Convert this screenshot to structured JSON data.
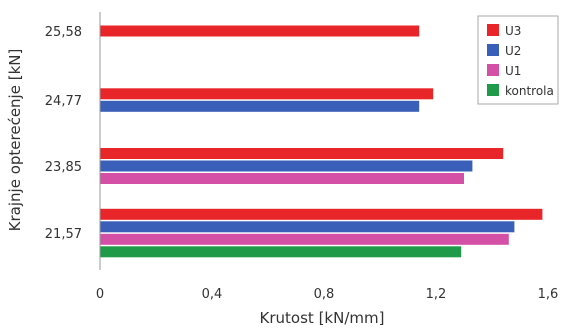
{
  "chart_data": {
    "type": "bar",
    "orientation": "horizontal",
    "title": "",
    "xlabel": "Krutost [kN/mm]",
    "ylabel": "Krajnje opterećenje [kN]",
    "xlim": [
      0,
      1.6
    ],
    "xticks": [
      0,
      0.4,
      0.8,
      1.2,
      1.6
    ],
    "xtick_labels": [
      "0",
      "0,4",
      "0,8",
      "1,2",
      "1,6"
    ],
    "categories": [
      "21,57",
      "23,85",
      "24,77",
      "25,58"
    ],
    "series": [
      {
        "name": "kontrola",
        "color": "#1f9a48",
        "values": [
          1.29,
          null,
          null,
          null
        ]
      },
      {
        "name": "U1",
        "color": "#d44fa6",
        "values": [
          1.46,
          1.3,
          null,
          null
        ]
      },
      {
        "name": "U2",
        "color": "#3a5fb8",
        "values": [
          1.48,
          1.33,
          1.14,
          null
        ]
      },
      {
        "name": "U3",
        "color": "#e8262a",
        "values": [
          1.58,
          1.44,
          1.19,
          1.14
        ]
      }
    ],
    "legend_order": [
      "U3",
      "U2",
      "U1",
      "kontrola"
    ],
    "legend_position": "top-right",
    "grid": false
  }
}
